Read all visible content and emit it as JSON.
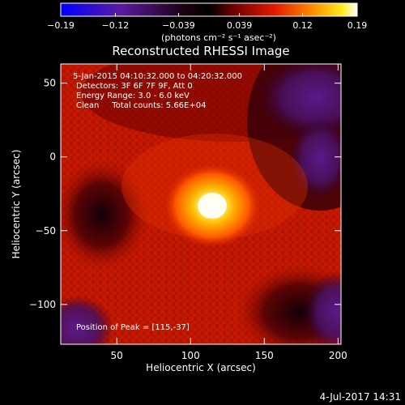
{
  "chart_data": {
    "type": "heatmap",
    "title": "Reconstructed RHESSI Image",
    "xlabel": "Heliocentric X (arcsec)",
    "ylabel": "Heliocentric Y (arcsec)",
    "xlim": [
      12,
      202
    ],
    "ylim": [
      -127,
      63
    ],
    "x_ticks": [
      50,
      100,
      150,
      200
    ],
    "y_ticks": [
      50,
      0,
      -50,
      -100
    ],
    "x_tick_labels": [
      "50",
      "100",
      "150",
      "200"
    ],
    "y_tick_labels": [
      "50",
      "0",
      "−50",
      "−100"
    ],
    "colorbar": {
      "ticks": [
        -0.19,
        -0.12,
        -0.039,
        0.039,
        0.12,
        0.19
      ],
      "tick_labels": [
        "−0.19",
        "−0.12",
        "−0.039",
        "0.039",
        "0.12",
        "0.19"
      ],
      "range": [
        -0.19,
        0.19
      ],
      "label": "(photons cm⁻² s⁻¹ asec⁻²)"
    },
    "annotations": [
      "5-Jan-2015 04:10:32.000 to 04:20:32.000",
      "Detectors: 3F 6F 7F 9F, Att 0",
      "Energy Range: 3.0 - 6.0 keV",
      "Clean     Total counts: 5.66E+04"
    ],
    "peak_label": "Position of Peak = [115,-37]",
    "peak": {
      "x": 115,
      "y": -37,
      "value": 0.19
    },
    "background_value": 0.05,
    "colors": {
      "background": "#000000",
      "text": "#ffffff",
      "colormap": [
        "#0000ff",
        "#6a1a9e",
        "#000000",
        "#8a0000",
        "#ff2a00",
        "#ff9a00",
        "#ffff30",
        "#ffffff"
      ]
    }
  },
  "footer": {
    "timestamp": "4-Jul-2017 14:31"
  }
}
